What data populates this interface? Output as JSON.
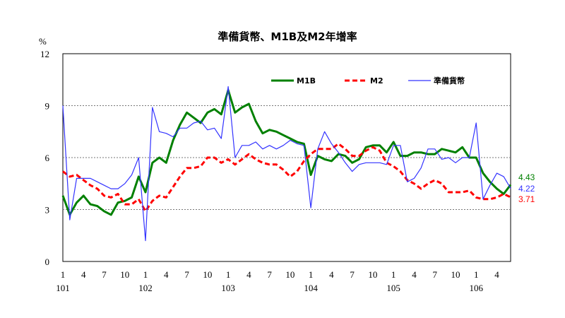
{
  "chart_data": {
    "type": "line",
    "title": "準備貨幣、M1B及M2年增率",
    "ylabel": "%",
    "ylim": [
      0,
      12
    ],
    "yticks": [
      0,
      3,
      6,
      9,
      12
    ],
    "grid": "horizontal-dotted",
    "legend_placement": "top-right",
    "x_month_ticks": [
      "1",
      "4",
      "7",
      "10",
      "1",
      "4",
      "7",
      "10",
      "1",
      "4",
      "7",
      "10",
      "1",
      "4",
      "7",
      "10",
      "1",
      "4",
      "7",
      "10",
      "1",
      "4"
    ],
    "x_month_tick_index": [
      0,
      3,
      6,
      9,
      12,
      15,
      18,
      21,
      24,
      27,
      30,
      33,
      36,
      39,
      42,
      45,
      48,
      51,
      54,
      57,
      60,
      63
    ],
    "x_year_labels": [
      "101",
      "102",
      "103",
      "104",
      "105",
      "106"
    ],
    "x_year_label_index": [
      0,
      12,
      24,
      36,
      48,
      60
    ],
    "series": [
      {
        "name": "M1B",
        "color": "#008000",
        "style": "solid-thick",
        "end_label": "4.43",
        "values": [
          3.8,
          2.7,
          3.4,
          3.8,
          3.3,
          3.2,
          2.9,
          2.7,
          3.4,
          3.5,
          3.7,
          4.9,
          4.0,
          5.7,
          6.0,
          5.7,
          7.0,
          7.9,
          8.6,
          8.3,
          8.0,
          8.6,
          8.8,
          8.5,
          9.9,
          8.6,
          8.9,
          9.1,
          8.1,
          7.4,
          7.6,
          7.5,
          7.3,
          7.1,
          6.9,
          6.8,
          5.0,
          6.1,
          5.9,
          5.8,
          6.2,
          6.1,
          5.7,
          5.9,
          6.6,
          6.7,
          6.7,
          6.3,
          6.9,
          6.1,
          6.1,
          6.3,
          6.3,
          6.2,
          6.2,
          6.5,
          6.4,
          6.3,
          6.6,
          6.0,
          6.0,
          5.1,
          4.6,
          4.2,
          3.9,
          4.43
        ]
      },
      {
        "name": "M2",
        "color": "#ff0000",
        "style": "dashed-thick",
        "end_label": "3.71",
        "values": [
          5.2,
          4.9,
          5.0,
          4.7,
          4.4,
          4.2,
          3.8,
          3.7,
          3.9,
          3.3,
          3.3,
          3.6,
          2.9,
          3.5,
          3.8,
          3.7,
          4.3,
          4.9,
          5.4,
          5.4,
          5.5,
          6.0,
          6.0,
          5.7,
          5.9,
          5.6,
          5.9,
          6.2,
          5.9,
          5.7,
          5.6,
          5.6,
          5.3,
          4.9,
          5.2,
          5.8,
          6.2,
          6.5,
          6.5,
          6.5,
          6.8,
          6.5,
          6.1,
          6.1,
          6.4,
          6.6,
          6.4,
          5.7,
          5.5,
          5.2,
          4.7,
          4.5,
          4.2,
          4.5,
          4.7,
          4.5,
          4.0,
          4.0,
          4.0,
          4.1,
          3.7,
          3.6,
          3.6,
          3.7,
          3.9,
          3.71
        ]
      },
      {
        "name": "準備貨幣",
        "color": "#3333ff",
        "style": "solid-thin",
        "end_label": "4.22",
        "values": [
          9.0,
          2.4,
          4.8,
          4.8,
          4.8,
          4.6,
          4.4,
          4.2,
          4.2,
          4.5,
          5.0,
          6.0,
          1.2,
          8.9,
          7.5,
          7.4,
          7.2,
          7.7,
          7.7,
          8.0,
          8.1,
          7.6,
          7.7,
          7.1,
          10.1,
          6.0,
          6.7,
          6.7,
          6.9,
          6.5,
          6.7,
          6.5,
          6.7,
          7.0,
          6.8,
          6.7,
          3.1,
          6.5,
          7.5,
          6.8,
          6.3,
          5.7,
          5.2,
          5.6,
          5.7,
          5.7,
          5.7,
          5.6,
          6.7,
          6.7,
          4.6,
          4.8,
          5.4,
          6.5,
          6.5,
          5.9,
          6.0,
          5.7,
          6.0,
          6.0,
          8.0,
          3.6,
          4.4,
          5.1,
          4.9,
          4.22
        ]
      }
    ]
  }
}
